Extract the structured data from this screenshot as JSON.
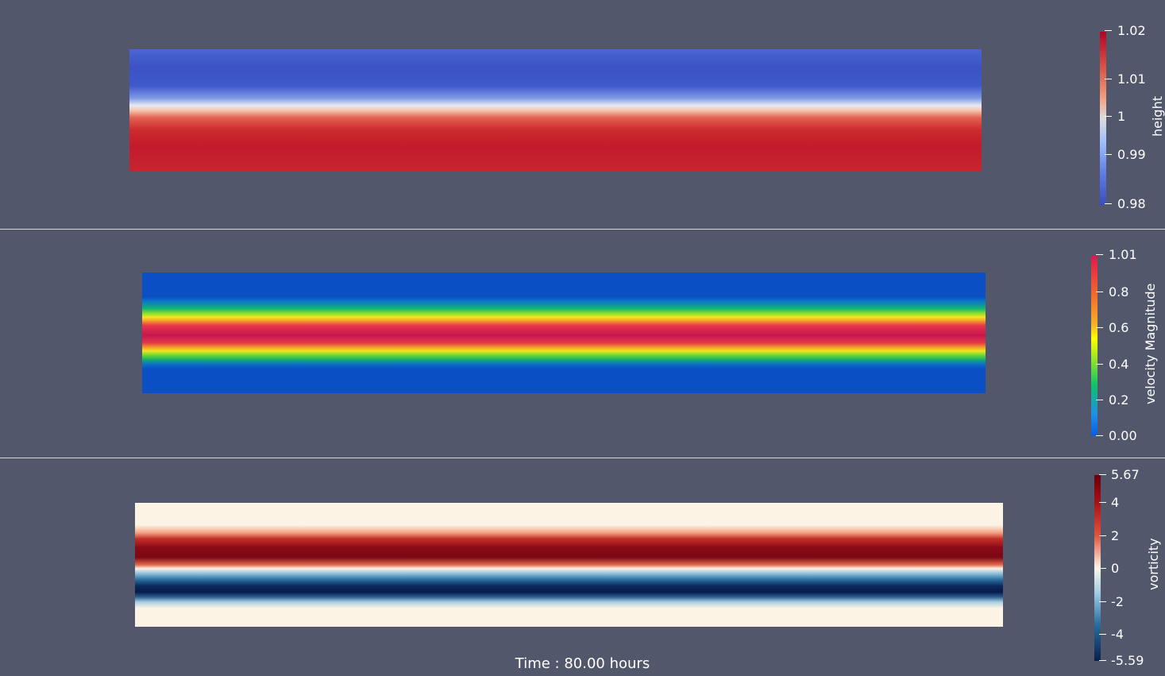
{
  "window": {
    "time_label": "Time : 80.00 hours"
  },
  "panels": [
    {
      "name": "height",
      "colorbar": {
        "title": "height",
        "ticks": [
          "1.02",
          "1.01",
          "1",
          "0.99",
          "0.98"
        ],
        "colormap": [
          "#b40426",
          "#d65244",
          "#f39d7c",
          "#dddddd",
          "#9ebefc",
          "#5d7ce6",
          "#3b4cc0"
        ]
      },
      "field_colors": {
        "top": "#3e57c9",
        "mid": "#f0f0f0",
        "bottom": "#c3212c"
      }
    },
    {
      "name": "velocity",
      "colorbar": {
        "title": "velocity Magnitude",
        "ticks": [
          "1.01",
          "0.8",
          "0.6",
          "0.4",
          "0.2",
          "0.00"
        ],
        "colormap": [
          "#e0174f",
          "#f46b2a",
          "#f7b027",
          "#ffff00",
          "#8fe32a",
          "#0ec26b",
          "#1f90e6",
          "#0a5ae6"
        ]
      },
      "field_colors": {
        "background": "#0a4fc4",
        "band_edge": "#1ec85a",
        "band_mid": "#ffeb1a",
        "band_core": "#d81f4c"
      }
    },
    {
      "name": "vorticity",
      "colorbar": {
        "title": "vorticity",
        "ticks": [
          "5.67",
          "4",
          "2",
          "0",
          "-2",
          "-4",
          "-5.59"
        ],
        "colormap": [
          "#67000d",
          "#a50f15",
          "#e0503a",
          "#fdf5e6",
          "#9ecae1",
          "#2c6e9e",
          "#08204d"
        ]
      },
      "field_colors": {
        "background": "#fcf3e4",
        "positive": "#8b0a17",
        "negative": "#061a4a"
      }
    }
  ]
}
